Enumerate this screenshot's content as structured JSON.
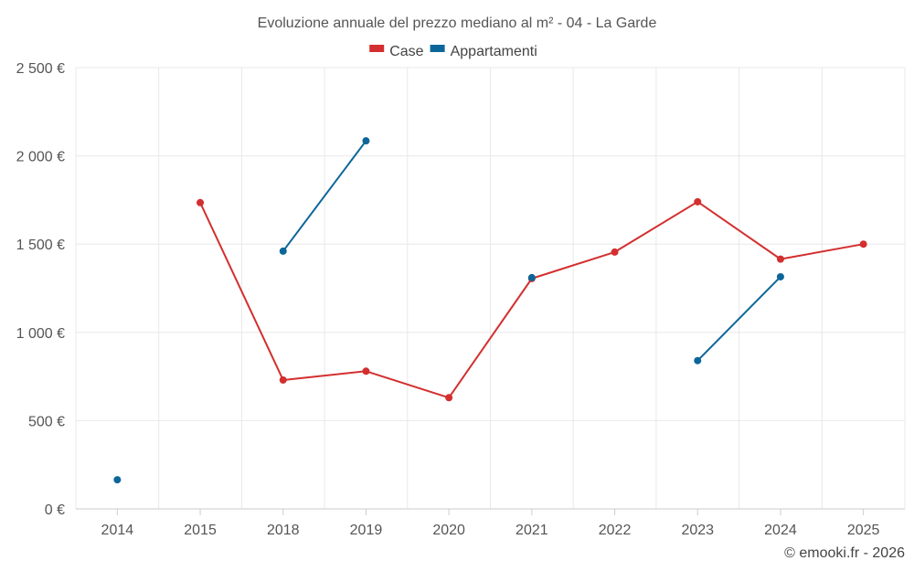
{
  "chart_data": {
    "type": "line",
    "title": "Evoluzione annuale del prezzo mediano al m² - 04 - La Garde",
    "categories": [
      "2014",
      "2015",
      "2018",
      "2019",
      "2020",
      "2021",
      "2022",
      "2023",
      "2024",
      "2025"
    ],
    "series": [
      {
        "name": "Case",
        "color": "#d32f2f",
        "values": [
          null,
          1735,
          730,
          780,
          630,
          1305,
          1455,
          1740,
          1415,
          1500
        ]
      },
      {
        "name": "Appartamenti",
        "color": "#0d6699",
        "values": [
          165,
          null,
          1460,
          2085,
          null,
          1310,
          null,
          840,
          1315,
          null
        ]
      }
    ],
    "ylim": [
      0,
      2500
    ],
    "yticks": [
      0,
      500,
      1000,
      1500,
      2000,
      2500
    ],
    "ytick_labels": [
      "0 €",
      "500 €",
      "1 000 €",
      "1 500 €",
      "2 000 €",
      "2 500 €"
    ],
    "xlabel": "",
    "ylabel": "",
    "grid": true,
    "legend_position": "top-center"
  },
  "credit": "© emooki.fr - 2026"
}
